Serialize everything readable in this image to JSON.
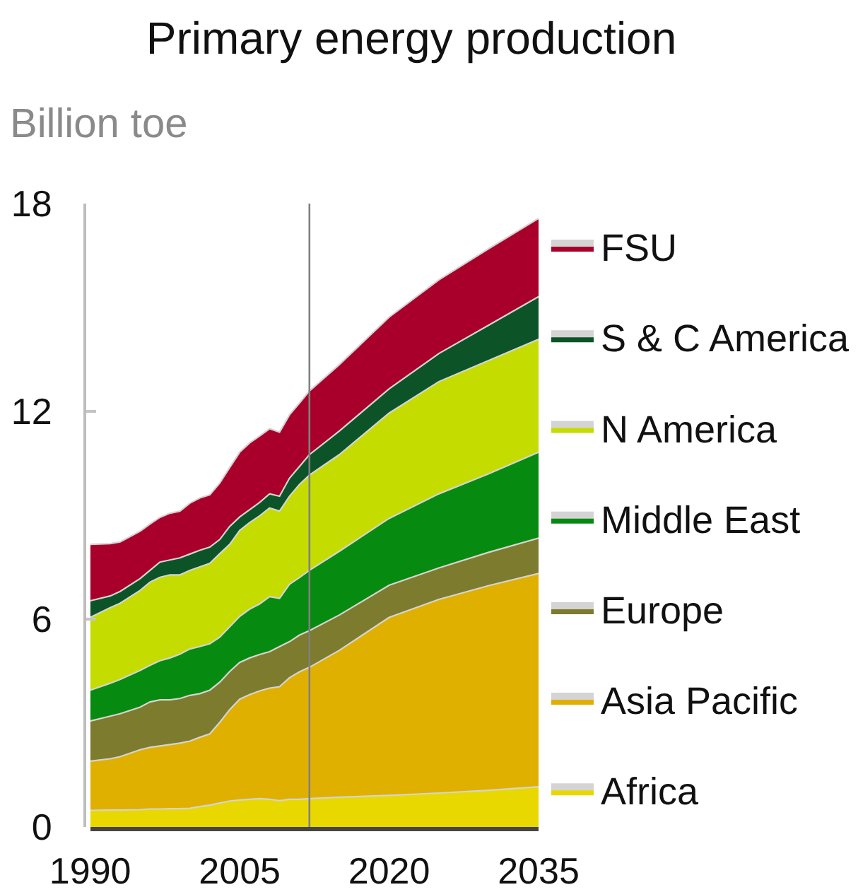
{
  "chart_data": {
    "type": "area",
    "title": "Primary energy production",
    "ylabel": "Billion toe",
    "stacked": true,
    "x": [
      1990,
      1992,
      1993,
      1995,
      1996,
      1997,
      1998,
      1999,
      2000,
      2001,
      2002,
      2003,
      2004,
      2005,
      2006,
      2007,
      2008,
      2009,
      2010,
      2011,
      2012,
      2015,
      2020,
      2025,
      2030,
      2035
    ],
    "series": [
      {
        "name": "Africa",
        "color": "#e8d800",
        "values": [
          0.48,
          0.49,
          0.49,
          0.5,
          0.52,
          0.52,
          0.53,
          0.53,
          0.54,
          0.59,
          0.63,
          0.69,
          0.75,
          0.78,
          0.8,
          0.82,
          0.8,
          0.76,
          0.8,
          0.8,
          0.82,
          0.86,
          0.91,
          0.98,
          1.06,
          1.16
        ]
      },
      {
        "name": "Asia Pacific",
        "color": "#e0b000",
        "values": [
          1.42,
          1.48,
          1.54,
          1.73,
          1.78,
          1.82,
          1.85,
          1.89,
          1.94,
          2.0,
          2.06,
          2.33,
          2.64,
          2.91,
          3.02,
          3.11,
          3.21,
          3.29,
          3.51,
          3.68,
          3.79,
          4.24,
          5.14,
          5.59,
          5.91,
          6.16
        ]
      },
      {
        "name": "Europe",
        "color": "#7d7b2e",
        "values": [
          1.16,
          1.23,
          1.24,
          1.23,
          1.31,
          1.33,
          1.29,
          1.29,
          1.32,
          1.26,
          1.26,
          1.16,
          1.1,
          1.06,
          1.06,
          1.05,
          1.05,
          1.16,
          1.04,
          1.06,
          1.06,
          1.02,
          0.93,
          0.91,
          0.96,
          1.02
        ]
      },
      {
        "name": "Middle East",
        "color": "#078a10",
        "values": [
          0.89,
          0.95,
          0.99,
          1.06,
          1.06,
          1.13,
          1.21,
          1.28,
          1.34,
          1.36,
          1.34,
          1.3,
          1.29,
          1.33,
          1.41,
          1.46,
          1.59,
          1.39,
          1.66,
          1.66,
          1.74,
          1.84,
          1.93,
          2.14,
          2.27,
          2.48
        ]
      },
      {
        "name": "N America",
        "color": "#c4dc00",
        "values": [
          2.1,
          2.18,
          2.2,
          2.31,
          2.4,
          2.41,
          2.4,
          2.29,
          2.27,
          2.3,
          2.32,
          2.41,
          2.38,
          2.48,
          2.5,
          2.54,
          2.56,
          2.52,
          2.54,
          2.69,
          2.75,
          2.79,
          3.04,
          3.24,
          3.27,
          3.26
        ]
      },
      {
        "name": "S & C America",
        "color": "#0c5428",
        "values": [
          0.48,
          0.34,
          0.34,
          0.34,
          0.34,
          0.44,
          0.43,
          0.49,
          0.47,
          0.48,
          0.47,
          0.41,
          0.52,
          0.39,
          0.37,
          0.39,
          0.41,
          0.43,
          0.52,
          0.52,
          0.59,
          0.68,
          0.7,
          0.81,
          1.02,
          1.23
        ]
      },
      {
        "name": "FSU",
        "color": "#a8002a",
        "values": [
          1.63,
          1.51,
          1.43,
          1.37,
          1.34,
          1.29,
          1.35,
          1.35,
          1.47,
          1.51,
          1.51,
          1.63,
          1.7,
          1.87,
          1.93,
          1.92,
          1.88,
          1.85,
          1.83,
          1.83,
          1.84,
          1.92,
          2.07,
          2.13,
          2.21,
          2.26
        ]
      }
    ],
    "xlim": [
      1990,
      2035
    ],
    "ylim": [
      0,
      18
    ],
    "xticks": [
      1990,
      2005,
      2020,
      2035
    ],
    "yticks": [
      0,
      6,
      12,
      18
    ],
    "ref_lines": [
      {
        "axis": "x",
        "value": 2012,
        "color": "#808080"
      }
    ],
    "legend": "right"
  }
}
